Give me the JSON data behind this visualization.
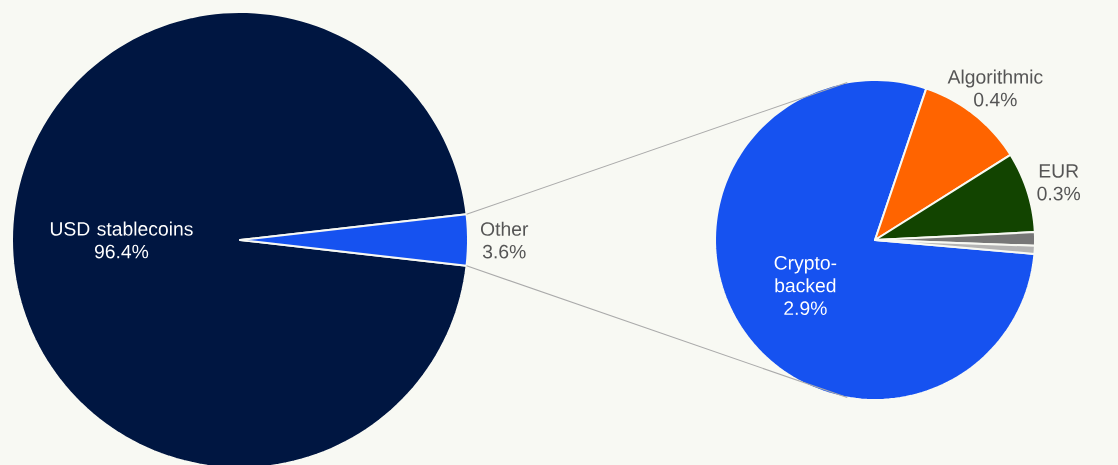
{
  "chart_data": [
    {
      "type": "pie",
      "categories": [
        "USD stablecoins",
        "Other"
      ],
      "values": [
        96.4,
        3.6
      ],
      "colors": [
        "#001641",
        "#1652f0"
      ],
      "value_labels": [
        "96.4%",
        "3.6%"
      ]
    },
    {
      "type": "pie",
      "categories": [
        "Crypto-backed",
        "Algorithmic",
        "EUR",
        null,
        null
      ],
      "values": [
        2.9,
        0.4,
        0.3,
        0.05,
        0.03
      ],
      "colors": [
        "#1652f0",
        "#ff6400",
        "#124400",
        "#777777",
        "#b4b4b4"
      ],
      "value_labels": [
        "2.9%",
        "0.4%",
        "0.3%",
        null,
        null
      ]
    }
  ]
}
